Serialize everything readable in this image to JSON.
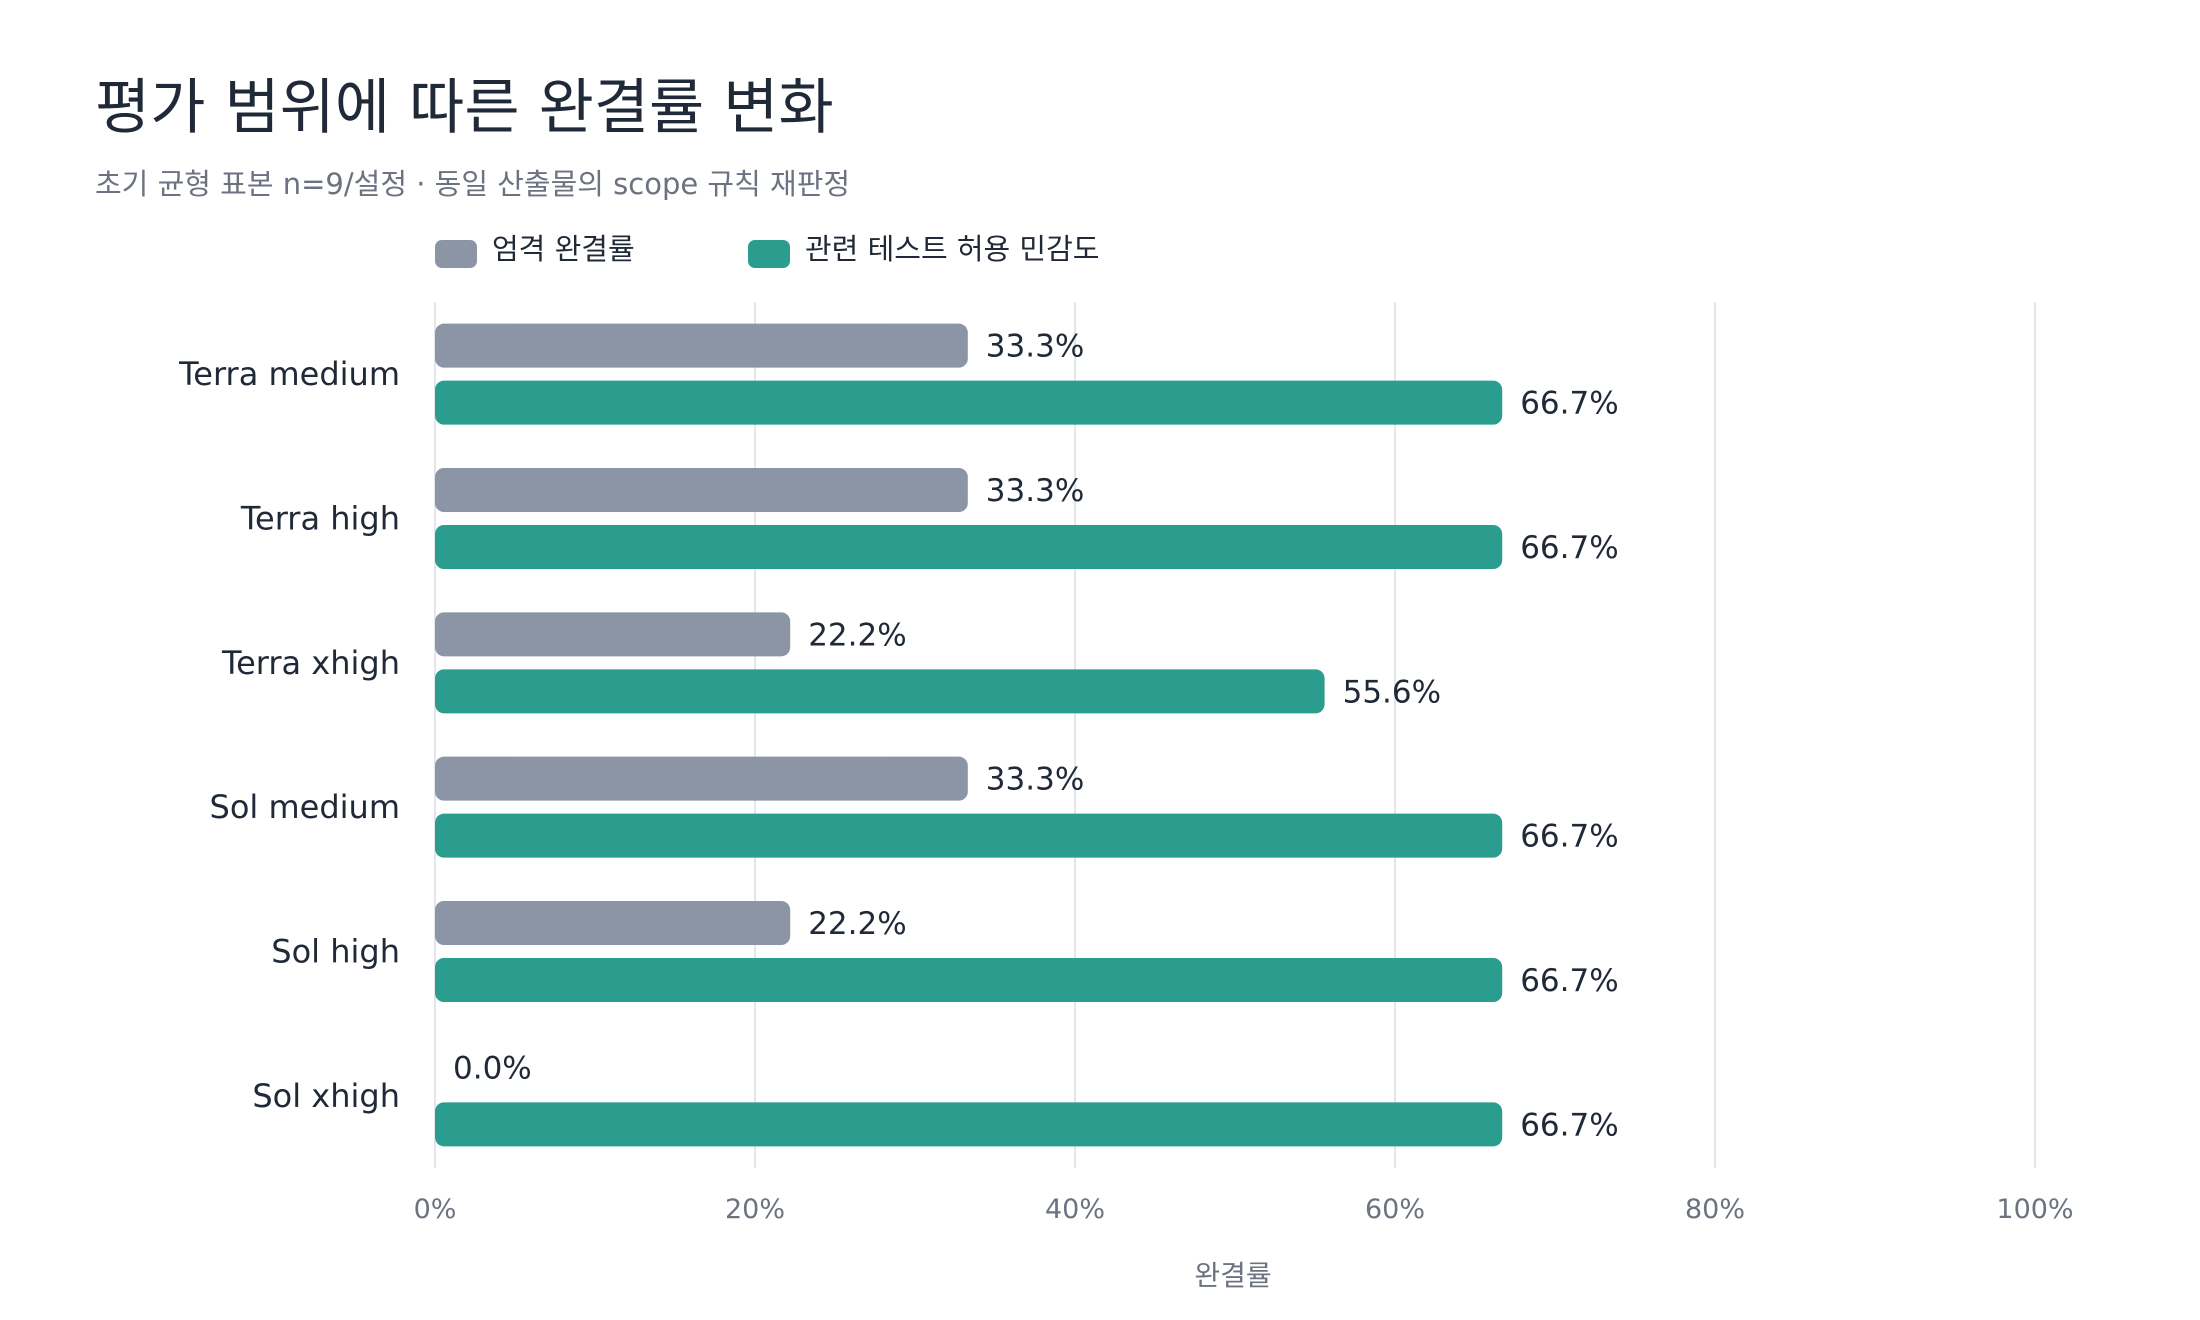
{
  "chart_data": {
    "type": "bar",
    "orientation": "horizontal",
    "title": "평가 범위에 따른 완결률 변화",
    "subtitle": "초기 균형 표본 n=9/설정 · 동일 산출물의 scope 규칙 재판정",
    "xlabel": "완결률",
    "ylabel": "",
    "xlim": [
      0,
      100
    ],
    "x_ticks": [
      "0%",
      "20%",
      "40%",
      "60%",
      "80%",
      "100%"
    ],
    "x_tick_values": [
      0,
      20,
      40,
      60,
      80,
      100
    ],
    "grid": true,
    "legend_position": "top-left",
    "categories": [
      "Terra medium",
      "Terra high",
      "Terra xhigh",
      "Sol medium",
      "Sol high",
      "Sol xhigh"
    ],
    "series": [
      {
        "name": "엄격 완결률",
        "color": "#8b95a5",
        "values": [
          33.3,
          33.3,
          22.2,
          33.3,
          22.2,
          0.0
        ],
        "labels": [
          "33.3%",
          "33.3%",
          "22.2%",
          "33.3%",
          "22.2%",
          "0.0%"
        ]
      },
      {
        "name": "관련 테스트 허용 민감도",
        "color": "#2a9d8f",
        "values": [
          66.7,
          66.7,
          55.6,
          66.7,
          66.7,
          66.7
        ],
        "labels": [
          "66.7%",
          "66.7%",
          "55.6%",
          "66.7%",
          "66.7%",
          "66.7%"
        ]
      }
    ],
    "colors": {
      "grid": "#e3e6ea",
      "text": "#1f2937",
      "muted": "#6b7280"
    }
  }
}
